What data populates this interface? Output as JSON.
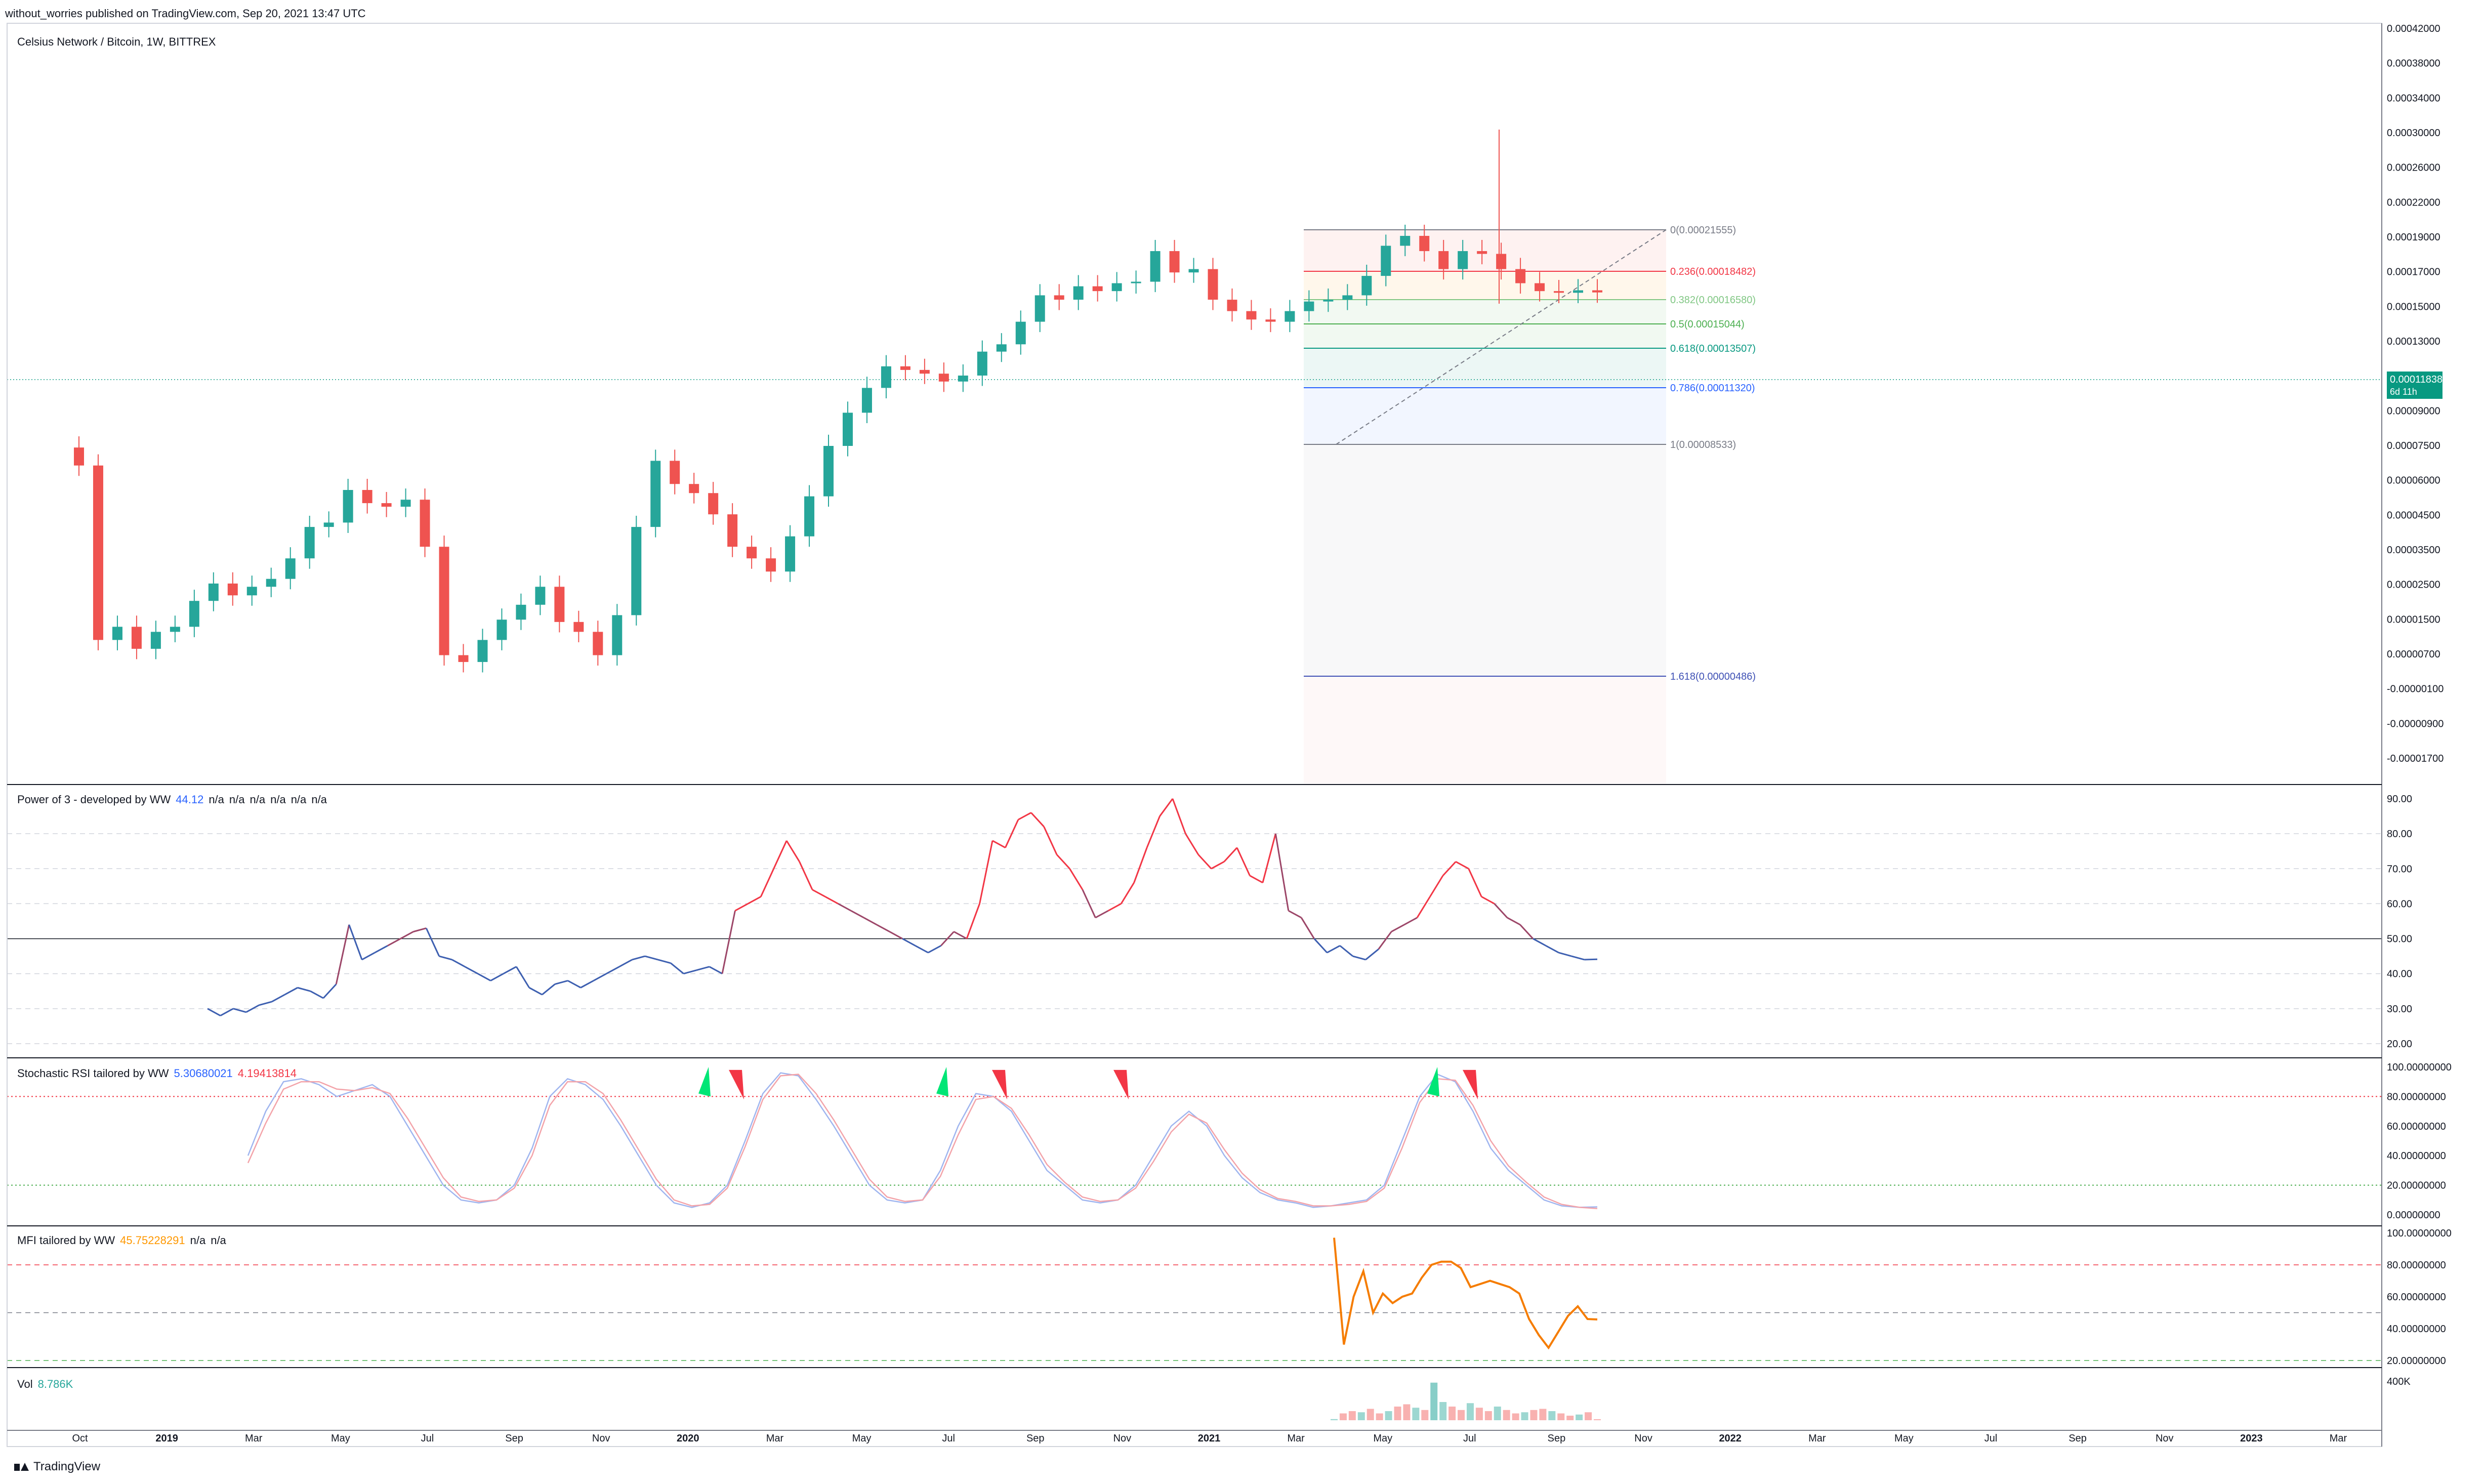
{
  "header": {
    "published": "without_worries published on TradingView.com, Sep 20, 2021 13:47 UTC"
  },
  "footer": {
    "brand": "TradingView"
  },
  "price_pane": {
    "symbol_title": "Celsius Network / Bitcoin, 1W, BITTREX",
    "last_price": "0.00011838",
    "last_price_countdown": "6d 11h",
    "y_ticks": [
      "0.00042000",
      "0.00038000",
      "0.00034000",
      "0.00030000",
      "0.00026000",
      "0.00022000",
      "0.00019000",
      "0.00017000",
      "0.00015000",
      "0.00013000",
      "0.00011000",
      "0.00009000",
      "0.00007500",
      "0.00006000",
      "0.00004500",
      "0.00003500",
      "0.00002500",
      "0.00001500",
      "0.00000700",
      "-0.00000100",
      "-0.00000900",
      "-0.00001700"
    ],
    "fib_levels": [
      {
        "label": "0(0.00021555)",
        "color": "#787b86"
      },
      {
        "label": "0.236(0.00018482)",
        "color": "#f23645"
      },
      {
        "label": "0.382(0.00016580)",
        "color": "#81c784"
      },
      {
        "label": "0.5(0.00015044)",
        "color": "#4caf50"
      },
      {
        "label": "0.618(0.00013507)",
        "color": "#089981"
      },
      {
        "label": "0.786(0.00011320)",
        "color": "#2962ff"
      },
      {
        "label": "1(0.00008533)",
        "color": "#787b86"
      },
      {
        "label": "1.618(0.00000486)",
        "color": "#3f51b5"
      }
    ]
  },
  "power3_pane": {
    "title": "Power of 3 - developed by WW",
    "value": "44.12",
    "na_values": [
      "n/a",
      "n/a",
      "n/a",
      "n/a",
      "n/a",
      "n/a"
    ],
    "y_ticks": [
      "90.00",
      "80.00",
      "70.00",
      "60.00",
      "50.00",
      "40.00",
      "30.00",
      "20.00"
    ]
  },
  "stoch_pane": {
    "title": "Stochastic RSI tailored by WW",
    "k_value": "5.30680021",
    "d_value": "4.19413814",
    "y_ticks": [
      "100.00000000",
      "80.00000000",
      "60.00000000",
      "40.00000000",
      "20.00000000",
      "0.00000000"
    ]
  },
  "mfi_pane": {
    "title": "MFI tailored by WW",
    "value": "45.75228291",
    "na_values": [
      "n/a",
      "n/a"
    ],
    "y_ticks": [
      "100.00000000",
      "80.00000000",
      "60.00000000",
      "40.00000000",
      "20.00000000"
    ]
  },
  "vol_pane": {
    "title": "Vol",
    "value": "8.786K",
    "y_ticks": [
      "400K"
    ]
  },
  "x_axis": {
    "ticks": [
      "Oct",
      "2019",
      "Mar",
      "May",
      "Jul",
      "Sep",
      "Nov",
      "2020",
      "Mar",
      "May",
      "Jul",
      "Sep",
      "Nov",
      "2021",
      "Mar",
      "May",
      "Jul",
      "Sep",
      "Nov",
      "2022",
      "Mar",
      "May",
      "Jul",
      "Sep",
      "Nov",
      "2023",
      "Mar"
    ]
  },
  "colors": {
    "up": "#26a69a",
    "down": "#ef5350",
    "accent": "#089981"
  },
  "chart_data": [
    {
      "type": "candlestick",
      "title": "Celsius Network / Bitcoin, 1W, BITTREX",
      "interval": "1W",
      "date_range": [
        "2018-09",
        "2021-09"
      ],
      "closes_approx": [
        2.05e-05,
        3.5e-06,
        4e-06,
        3.2e-06,
        3.8e-06,
        4e-06,
        5.2e-06,
        6.2e-06,
        5.5e-06,
        6e-06,
        6.5e-06,
        8e-06,
        1.1e-05,
        1.15e-05,
        1.6e-05,
        1.4e-05,
        1.35e-05,
        1.45e-05,
        9e-06,
        3e-06,
        2.8e-06,
        3.5e-06,
        4.3e-06,
        5e-06,
        6e-06,
        4.2e-06,
        3.8e-06,
        3e-06,
        4.5e-06,
        1.1e-05,
        2.15e-05,
        1.7e-05,
        1.55e-05,
        1.25e-05,
        9e-06,
        8e-06,
        7e-06,
        1e-05,
        1.5e-05,
        2.5e-05,
        3.5e-05,
        4.5e-05,
        5.6e-05,
        5.4e-05,
        5.2e-05,
        4.8e-05,
        5.1e-05,
        6.5e-05,
        7e-05,
        8.8e-05,
        0.000115,
        0.00011,
        0.000126,
        0.00012,
        0.00013,
        0.000132,
        0.00018,
        0.000145,
        0.00015,
        0.00011,
        9.8e-05,
        9e-05,
        8.8e-05,
        9.8e-05,
        0.000108,
        0.00011,
        0.000115,
        0.00014,
        0.00019,
        0.00021,
        0.00018,
        0.00015,
        0.00018,
        0.000175,
        0.00015,
        0.00013,
        0.00012,
        0.000118,
        0.000121,
        0.0001184
      ],
      "fibonacci_retracement": {
        "0": 0.00021555,
        "0.236": 0.00018482,
        "0.382": 0.0001658,
        "0.5": 0.00015044,
        "0.618": 0.00013507,
        "0.786": 0.0001132,
        "1": 8.533e-05,
        "1.618": 4.86e-06
      },
      "last_price": 0.00011838
    },
    {
      "type": "line",
      "title": "Power of 3 - developed by WW",
      "ylim": [
        20,
        90
      ],
      "reference_line": 50,
      "values": [
        30,
        28,
        30,
        29,
        31,
        32,
        34,
        36,
        35,
        33,
        37,
        54,
        44,
        46,
        48,
        50,
        52,
        53,
        45,
        44,
        42,
        40,
        38,
        40,
        42,
        36,
        34,
        37,
        38,
        36,
        38,
        40,
        42,
        44,
        45,
        44,
        43,
        40,
        41,
        42,
        40,
        58,
        60,
        62,
        70,
        78,
        72,
        64,
        62,
        60,
        58,
        56,
        54,
        52,
        50,
        48,
        46,
        48,
        52,
        50,
        60,
        78,
        76,
        84,
        86,
        82,
        74,
        70,
        64,
        56,
        58,
        60,
        66,
        76,
        85,
        90,
        80,
        74,
        70,
        72,
        76,
        68,
        66,
        80,
        58,
        56,
        50,
        46,
        48,
        45,
        44,
        47,
        52,
        54,
        56,
        62,
        68,
        72,
        70,
        62,
        60,
        56,
        54,
        50,
        48,
        46,
        45,
        44,
        44.12
      ],
      "value": 44.12
    },
    {
      "type": "line",
      "title": "Stochastic RSI tailored by WW",
      "ylim": [
        0,
        100
      ],
      "guides": [
        80,
        20
      ],
      "series": [
        {
          "name": "K",
          "color": "#2962ff",
          "values": [
            40,
            70,
            90,
            92,
            88,
            80,
            84,
            88,
            80,
            60,
            40,
            20,
            10,
            8,
            10,
            20,
            45,
            80,
            92,
            88,
            78,
            60,
            40,
            20,
            8,
            5,
            8,
            20,
            50,
            82,
            96,
            94,
            78,
            60,
            40,
            20,
            10,
            8,
            10,
            30,
            60,
            82,
            80,
            70,
            50,
            30,
            20,
            10,
            8,
            10,
            20,
            40,
            60,
            70,
            60,
            40,
            25,
            15,
            10,
            8,
            5,
            6,
            8,
            10,
            20,
            50,
            80,
            95,
            90,
            70,
            45,
            30,
            20,
            10,
            6,
            5,
            5.31
          ]
        },
        {
          "name": "D",
          "color": "#f23645",
          "values": [
            35,
            62,
            85,
            90,
            90,
            85,
            84,
            86,
            82,
            65,
            45,
            25,
            12,
            9,
            10,
            18,
            40,
            74,
            90,
            90,
            82,
            64,
            44,
            24,
            10,
            6,
            7,
            18,
            46,
            78,
            94,
            95,
            82,
            64,
            44,
            24,
            12,
            9,
            10,
            26,
            54,
            78,
            80,
            72,
            54,
            34,
            22,
            12,
            9,
            10,
            18,
            36,
            56,
            68,
            62,
            44,
            28,
            17,
            11,
            9,
            6,
            6,
            7,
            9,
            18,
            45,
            76,
            92,
            91,
            74,
            50,
            33,
            22,
            12,
            7,
            5,
            4.19
          ]
        }
      ]
    },
    {
      "type": "line",
      "title": "MFI tailored by WW",
      "ylim": [
        20,
        100
      ],
      "guides": [
        80,
        50,
        20
      ],
      "values": [
        97,
        30,
        60,
        76,
        50,
        62,
        56,
        60,
        62,
        72,
        80,
        82,
        82,
        78,
        66,
        68,
        70,
        68,
        66,
        62,
        46,
        36,
        28,
        38,
        48,
        54,
        46,
        45.75
      ],
      "value": 45.75228291
    },
    {
      "type": "bar",
      "title": "Vol",
      "ylim": [
        0,
        400
      ],
      "unit": "K",
      "values": [
        10,
        60,
        80,
        70,
        100,
        60,
        80,
        120,
        140,
        110,
        90,
        330,
        160,
        120,
        90,
        150,
        110,
        80,
        120,
        90,
        60,
        70,
        90,
        100,
        80,
        60,
        40,
        50,
        70,
        8.786
      ],
      "value": "8.786K"
    }
  ]
}
